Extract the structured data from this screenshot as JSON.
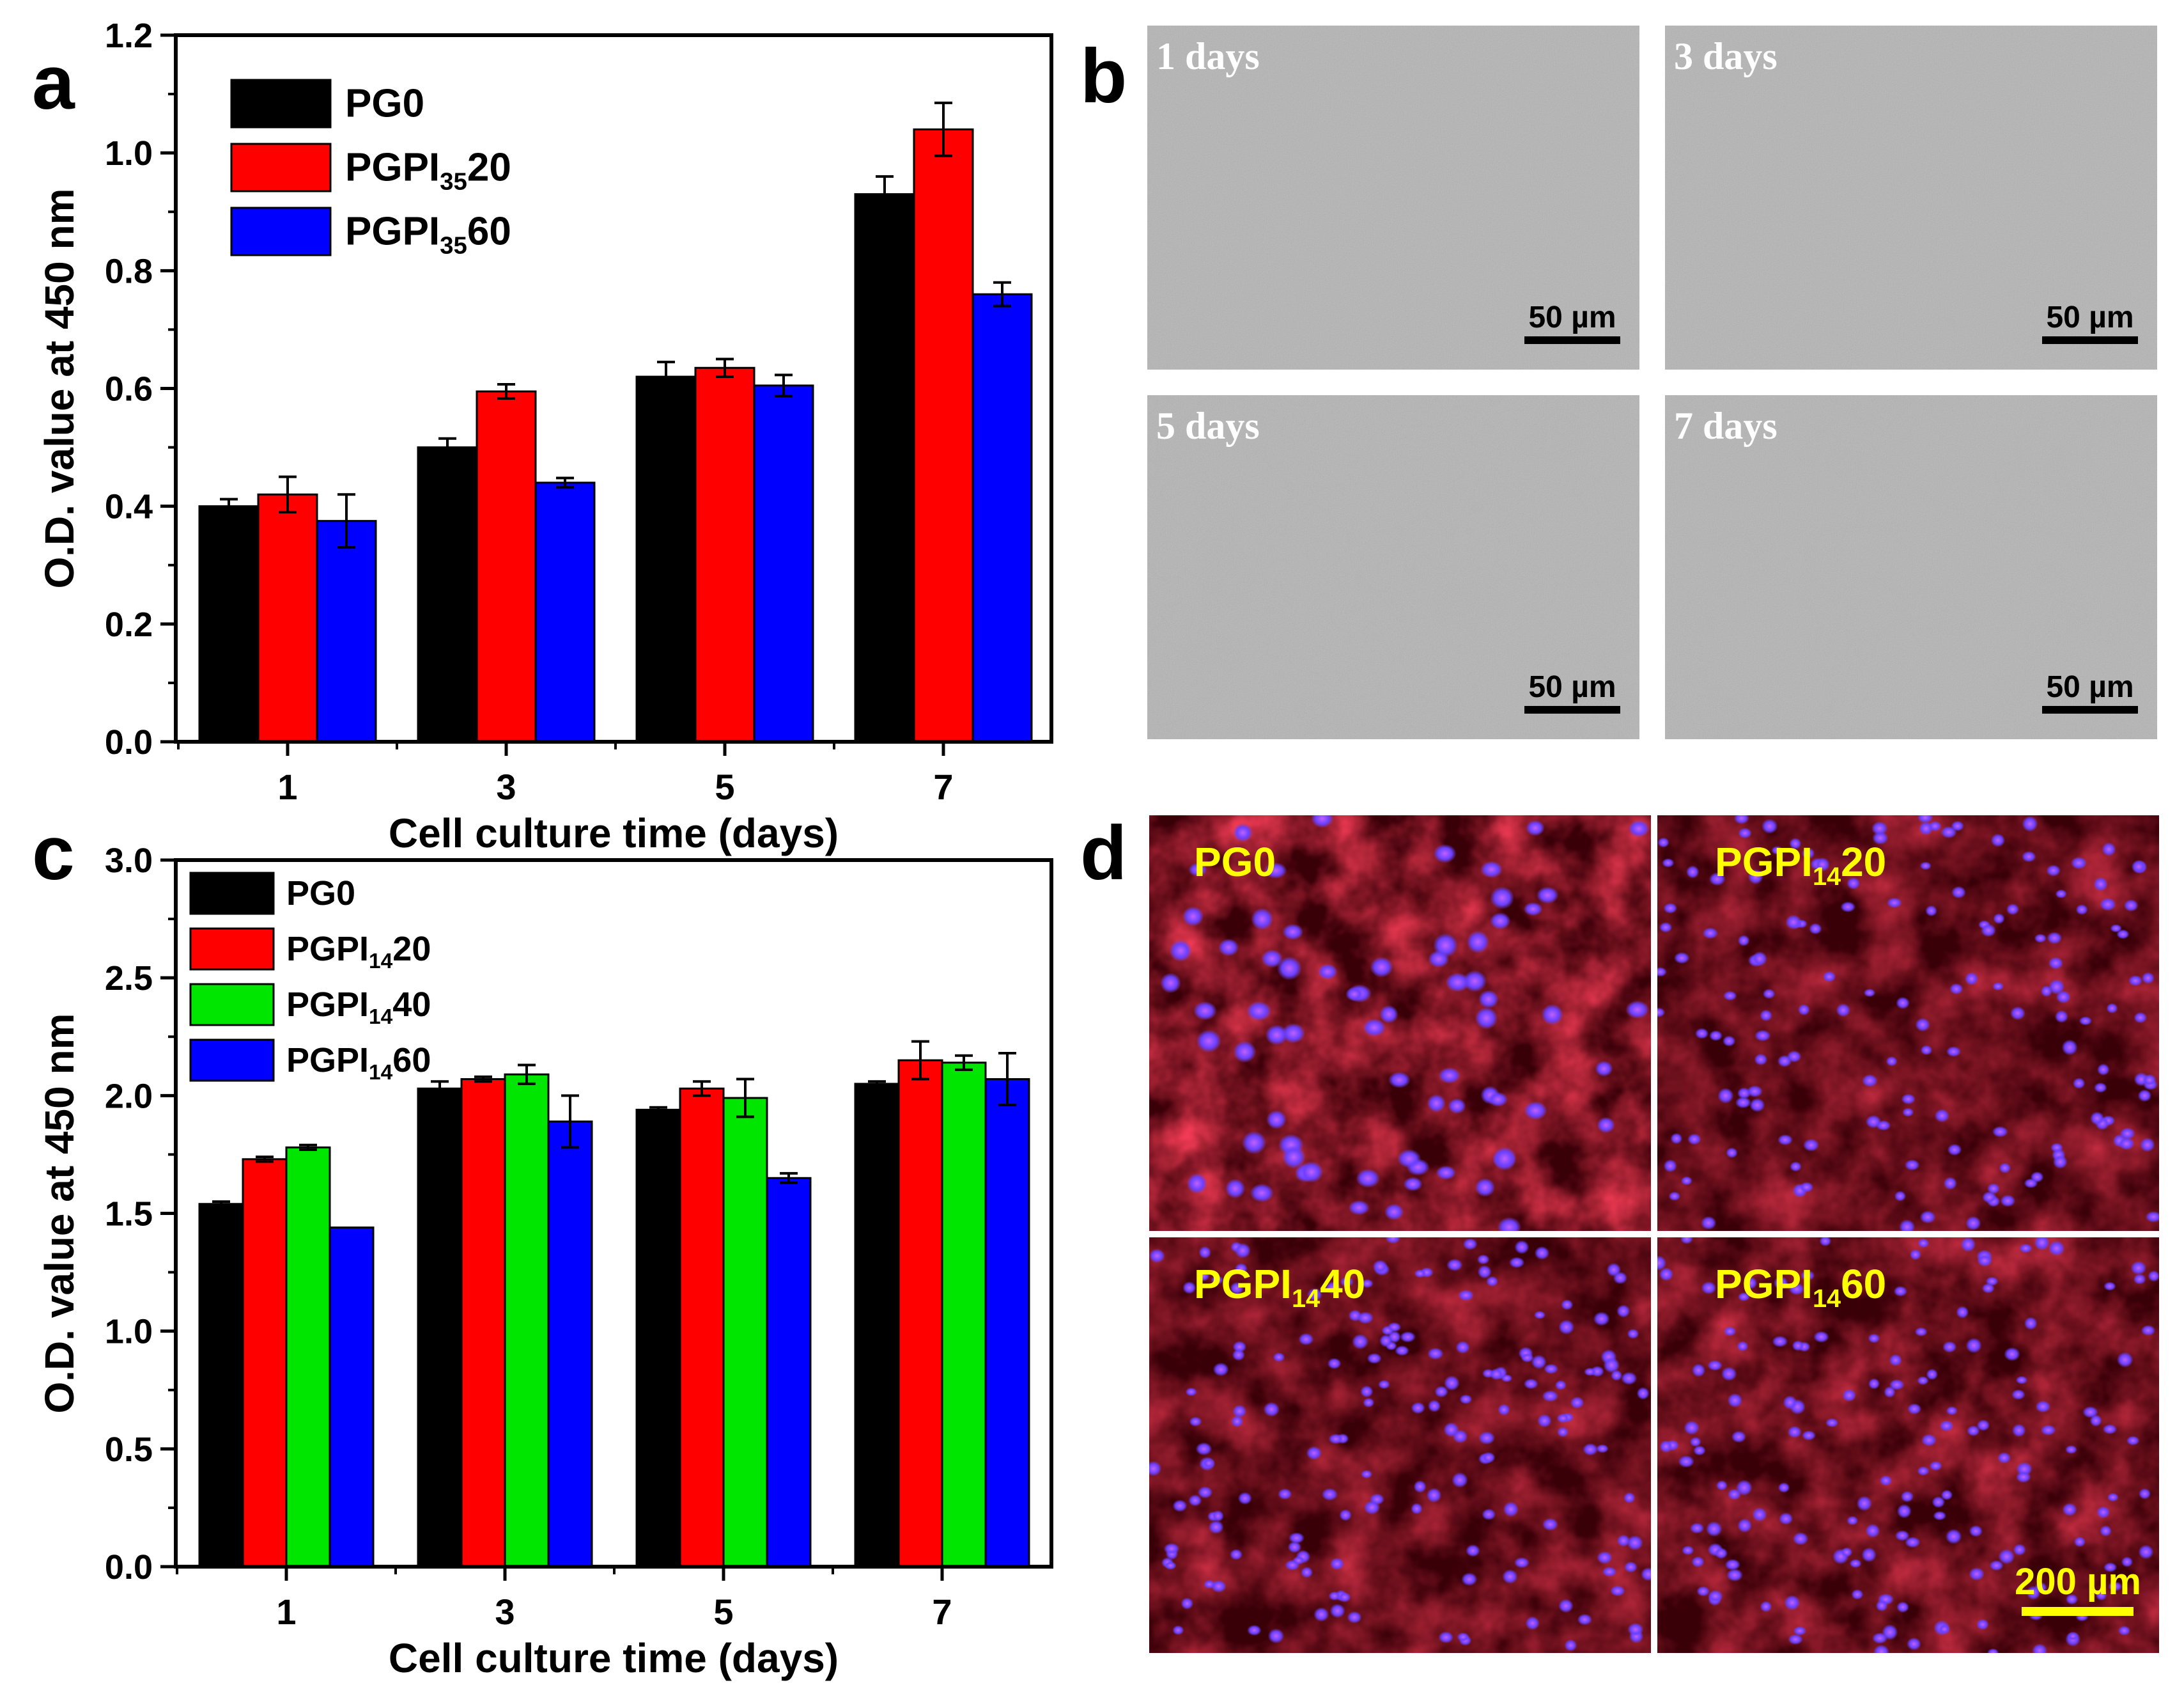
{
  "panels": {
    "a": {
      "letter": "a",
      "legend": [
        {
          "main": "PG0",
          "sub": "",
          "tail": ""
        },
        {
          "main": "PGPI",
          "sub": "35",
          "tail": "20"
        },
        {
          "main": "PGPI",
          "sub": "35",
          "tail": "60"
        }
      ]
    },
    "b": {
      "letter": "b",
      "tiles": [
        {
          "label": "1 days",
          "scale": "50 µm"
        },
        {
          "label": "3 days",
          "scale": "50 µm"
        },
        {
          "label": "5 days",
          "scale": "50 µm"
        },
        {
          "label": "7 days",
          "scale": "50 µm"
        }
      ]
    },
    "c": {
      "letter": "c",
      "legend": [
        {
          "main": "PG0",
          "sub": "",
          "tail": ""
        },
        {
          "main": "PGPI",
          "sub": "14",
          "tail": "20"
        },
        {
          "main": "PGPI",
          "sub": "14",
          "tail": "40"
        },
        {
          "main": "PGPI",
          "sub": "14",
          "tail": "60"
        }
      ]
    },
    "d": {
      "letter": "d",
      "tiles": [
        {
          "main": "PG0",
          "sub": "",
          "tail": ""
        },
        {
          "main": "PGPI",
          "sub": "14",
          "tail": "20"
        },
        {
          "main": "PGPI",
          "sub": "14",
          "tail": "40"
        },
        {
          "main": "PGPI",
          "sub": "14",
          "tail": "60"
        }
      ],
      "scale": "200 µm"
    }
  },
  "colors": {
    "black": "#000000",
    "red": "#ff0000",
    "blue": "#0000ff",
    "green": "#00e600",
    "fluo_label": "#ffff00",
    "sem_gray": "#b4b4b4",
    "fluo_bg": "#3a0008"
  },
  "chart_data": [
    {
      "type": "bar",
      "panel": "a",
      "xlabel": "Cell culture time (days)",
      "ylabel": "O.D. value at 450 nm",
      "categories": [
        "1",
        "3",
        "5",
        "7"
      ],
      "ylim": [
        0,
        1.2
      ],
      "yticks": [
        "0.0",
        "0.2",
        "0.4",
        "0.6",
        "0.8",
        "1.0",
        "1.2"
      ],
      "legend_position": "top-left",
      "grid": false,
      "series": [
        {
          "name": "PG0",
          "color": "#000000",
          "values": [
            0.4,
            0.5,
            0.62,
            0.93
          ],
          "errors": [
            0.012,
            0.015,
            0.025,
            0.03
          ]
        },
        {
          "name": "PGPI3520",
          "color": "#ff0000",
          "values": [
            0.42,
            0.595,
            0.635,
            1.04
          ],
          "errors": [
            0.03,
            0.012,
            0.015,
            0.045
          ]
        },
        {
          "name": "PGPI3560",
          "color": "#0000ff",
          "values": [
            0.375,
            0.44,
            0.605,
            0.76
          ],
          "errors": [
            0.045,
            0.008,
            0.018,
            0.02
          ]
        }
      ]
    },
    {
      "type": "bar",
      "panel": "c",
      "xlabel": "Cell culture time (days)",
      "ylabel": "O.D. value at 450 nm",
      "categories": [
        "1",
        "3",
        "5",
        "7"
      ],
      "ylim": [
        0,
        3.0
      ],
      "yticks": [
        "0.0",
        "0.5",
        "1.0",
        "1.5",
        "2.0",
        "2.5",
        "3.0"
      ],
      "legend_position": "top-left",
      "grid": false,
      "series": [
        {
          "name": "PG0",
          "color": "#000000",
          "values": [
            1.54,
            2.03,
            1.94,
            2.05
          ],
          "errors": [
            0.01,
            0.03,
            0.01,
            0.01
          ]
        },
        {
          "name": "PGPI1420",
          "color": "#ff0000",
          "values": [
            1.73,
            2.07,
            2.03,
            2.15
          ],
          "errors": [
            0.01,
            0.01,
            0.03,
            0.08
          ]
        },
        {
          "name": "PGPI1440",
          "color": "#00e600",
          "values": [
            1.78,
            2.09,
            1.99,
            2.14
          ],
          "errors": [
            0.01,
            0.04,
            0.08,
            0.03
          ]
        },
        {
          "name": "PGPI1460",
          "color": "#0000ff",
          "values": [
            1.44,
            1.89,
            1.65,
            2.07
          ],
          "errors": [
            0.0,
            0.11,
            0.02,
            0.11
          ]
        }
      ]
    }
  ]
}
